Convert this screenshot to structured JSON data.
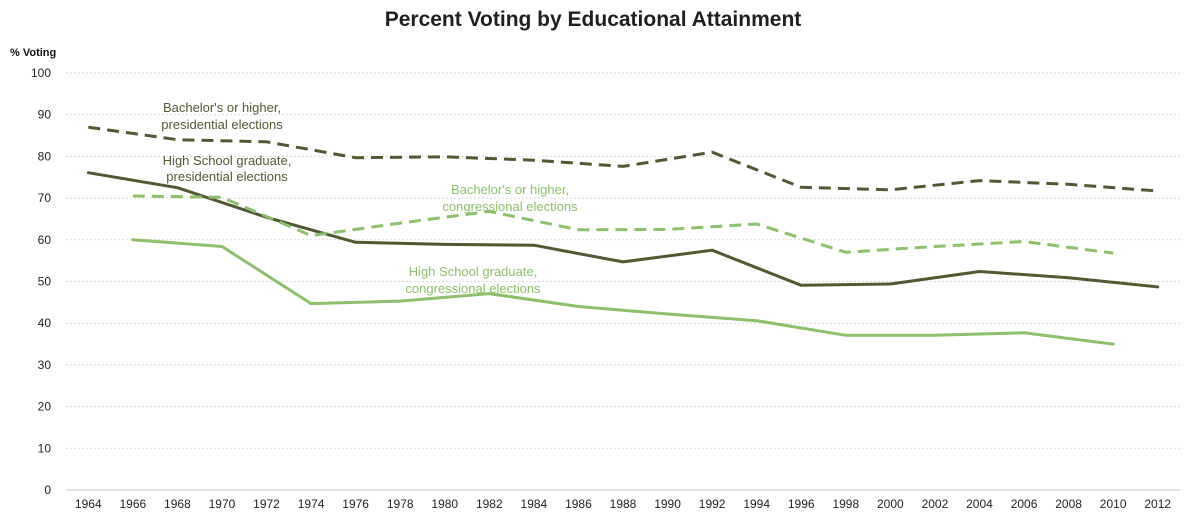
{
  "chart_data": {
    "type": "line",
    "title": "Percent Voting by Educational Attainment",
    "ylabel": "% Voting",
    "xlabel": "",
    "ylim": [
      0,
      100
    ],
    "yticks": [
      0,
      10,
      20,
      30,
      40,
      50,
      60,
      70,
      80,
      90,
      100
    ],
    "grid": true,
    "x": [
      "1964",
      "1966",
      "1968",
      "1970",
      "1972",
      "1974",
      "1976",
      "1978",
      "1980",
      "1982",
      "1984",
      "1986",
      "1988",
      "1990",
      "1992",
      "1994",
      "1996",
      "1998",
      "2000",
      "2002",
      "2004",
      "2006",
      "2008",
      "2010",
      "2012"
    ],
    "series": [
      {
        "name": "Bachelor's or higher, presidential elections",
        "color": "#4f5a32",
        "dash": true,
        "points": [
          [
            "1964",
            87
          ],
          [
            "1968",
            84
          ],
          [
            "1972",
            83.5
          ],
          [
            "1976",
            79.7
          ],
          [
            "1980",
            79.9
          ],
          [
            "1984",
            79.1
          ],
          [
            "1988",
            77.6
          ],
          [
            "1992",
            81
          ],
          [
            "1996",
            72.6
          ],
          [
            "2000",
            72
          ],
          [
            "2004",
            74.2
          ],
          [
            "2008",
            73.3
          ],
          [
            "2012",
            71.7
          ]
        ]
      },
      {
        "name": "High School graduate, presidential elections",
        "color": "#4f5a32",
        "dash": false,
        "points": [
          [
            "1964",
            76.1
          ],
          [
            "1968",
            72.5
          ],
          [
            "1972",
            65.4
          ],
          [
            "1976",
            59.4
          ],
          [
            "1980",
            58.9
          ],
          [
            "1984",
            58.7
          ],
          [
            "1988",
            54.7
          ],
          [
            "1992",
            57.5
          ],
          [
            "1996",
            49.1
          ],
          [
            "2000",
            49.4
          ],
          [
            "2004",
            52.4
          ],
          [
            "2008",
            50.9
          ],
          [
            "2012",
            48.7
          ]
        ]
      },
      {
        "name": "Bachelor's or higher, congressional elections",
        "color": "#8cc06a",
        "dash": true,
        "points": [
          [
            "1966",
            70.5
          ],
          [
            "1970",
            70.2
          ],
          [
            "1974",
            61
          ],
          [
            "1978",
            64
          ],
          [
            "1982",
            66.8
          ],
          [
            "1986",
            62.4
          ],
          [
            "1990",
            62.5
          ],
          [
            "1994",
            63.8
          ],
          [
            "1998",
            57
          ],
          [
            "2002",
            58.4
          ],
          [
            "2006",
            59.6
          ],
          [
            "2010",
            56.8
          ]
        ]
      },
      {
        "name": "High School graduate, congressional elections",
        "color": "#8cc06a",
        "dash": false,
        "points": [
          [
            "1966",
            60
          ],
          [
            "1970",
            58.4
          ],
          [
            "1974",
            44.7
          ],
          [
            "1978",
            45.3
          ],
          [
            "1982",
            47.1
          ],
          [
            "1986",
            44
          ],
          [
            "1990",
            42.2
          ],
          [
            "1994",
            40.6
          ],
          [
            "1998",
            37.1
          ],
          [
            "2002",
            37.1
          ],
          [
            "2006",
            37.7
          ],
          [
            "2010",
            35
          ]
        ]
      }
    ],
    "annotations": [
      {
        "lines": [
          "Bachelor's or higher,",
          "presidential elections"
        ],
        "series": 0
      },
      {
        "lines": [
          "High School graduate,",
          "presidential elections"
        ],
        "series": 1
      },
      {
        "lines": [
          "Bachelor's or higher,",
          "congressional elections"
        ],
        "series": 2
      },
      {
        "lines": [
          "High School graduate,",
          "congressional elections"
        ],
        "series": 3
      }
    ]
  }
}
